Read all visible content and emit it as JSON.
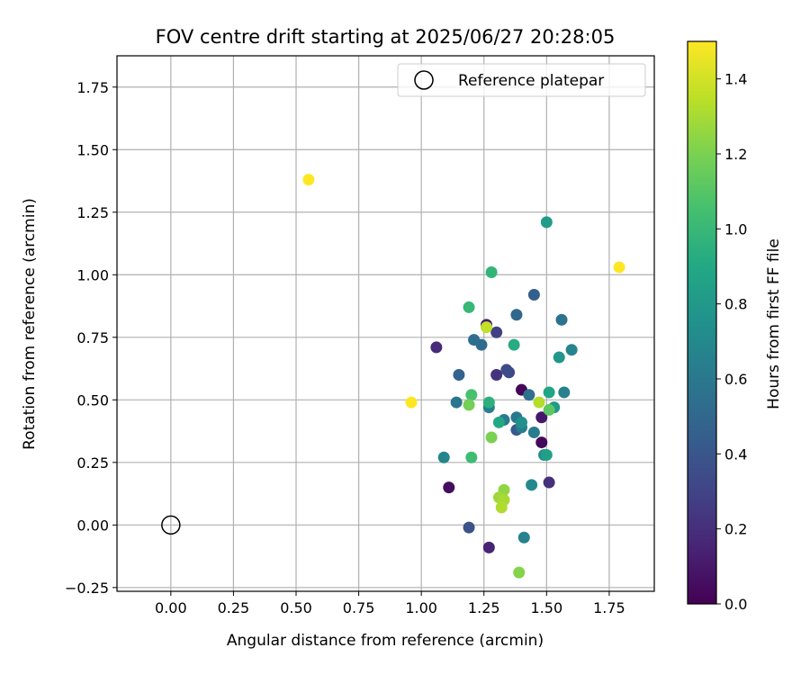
{
  "chart_data": {
    "type": "scatter",
    "title": "FOV centre drift starting at 2025/06/27 20:28:05",
    "xlabel": "Angular distance from reference (arcmin)",
    "ylabel": "Rotation from reference (arcmin)",
    "xlim": [
      -0.215,
      1.93
    ],
    "ylim": [
      -0.265,
      1.875
    ],
    "xticks": [
      0.0,
      0.25,
      0.5,
      0.75,
      1.0,
      1.25,
      1.5,
      1.75
    ],
    "yticks": [
      -0.25,
      0.0,
      0.25,
      0.5,
      0.75,
      1.0,
      1.25,
      1.5,
      1.75
    ],
    "xtick_labels": [
      "0.00",
      "0.25",
      "0.50",
      "0.75",
      "1.00",
      "1.25",
      "1.50",
      "1.75"
    ],
    "ytick_labels": [
      "−0.25",
      "0.00",
      "0.25",
      "0.50",
      "0.75",
      "1.00",
      "1.25",
      "1.50",
      "1.75"
    ],
    "grid": true,
    "legend": {
      "placement": "top-right",
      "entries": [
        "Reference platepar"
      ]
    },
    "reference_point": {
      "x": 0.0,
      "y": 0.0,
      "label": "Reference platepar"
    },
    "colorbar": {
      "label": "Hours from first FF file",
      "colormap": "viridis",
      "range": [
        0.0,
        1.5
      ],
      "ticks": [
        0.0,
        0.2,
        0.4,
        0.6,
        0.8,
        1.0,
        1.2,
        1.4
      ],
      "tick_labels": [
        "0.0",
        "0.2",
        "0.4",
        "0.6",
        "0.8",
        "1.0",
        "1.2",
        "1.4"
      ]
    },
    "points": [
      {
        "x": 1.4,
        "y": 0.54,
        "c": 0.02
      },
      {
        "x": 1.48,
        "y": 0.33,
        "c": 0.03
      },
      {
        "x": 1.11,
        "y": 0.15,
        "c": 0.05
      },
      {
        "x": 1.48,
        "y": 0.43,
        "c": 0.1
      },
      {
        "x": 1.26,
        "y": 0.8,
        "c": 0.12
      },
      {
        "x": 1.27,
        "y": -0.09,
        "c": 0.15
      },
      {
        "x": 1.06,
        "y": 0.71,
        "c": 0.18
      },
      {
        "x": 1.51,
        "y": 0.17,
        "c": 0.2
      },
      {
        "x": 1.3,
        "y": 0.6,
        "c": 0.22
      },
      {
        "x": 1.3,
        "y": 0.77,
        "c": 0.28
      },
      {
        "x": 1.35,
        "y": 0.61,
        "c": 0.32
      },
      {
        "x": 1.34,
        "y": 0.62,
        "c": 0.34
      },
      {
        "x": 1.19,
        "y": -0.01,
        "c": 0.38
      },
      {
        "x": 1.38,
        "y": 0.38,
        "c": 0.42
      },
      {
        "x": 1.45,
        "y": 0.92,
        "c": 0.45
      },
      {
        "x": 1.15,
        "y": 0.6,
        "c": 0.48
      },
      {
        "x": 1.38,
        "y": 0.84,
        "c": 0.5
      },
      {
        "x": 1.24,
        "y": 0.72,
        "c": 0.52
      },
      {
        "x": 1.21,
        "y": 0.74,
        "c": 0.54
      },
      {
        "x": 1.43,
        "y": 0.52,
        "c": 0.55
      },
      {
        "x": 1.56,
        "y": 0.82,
        "c": 0.57
      },
      {
        "x": 1.14,
        "y": 0.49,
        "c": 0.58
      },
      {
        "x": 1.38,
        "y": 0.43,
        "c": 0.6
      },
      {
        "x": 1.33,
        "y": 0.42,
        "c": 0.62
      },
      {
        "x": 1.45,
        "y": 0.37,
        "c": 0.62
      },
      {
        "x": 1.4,
        "y": 0.39,
        "c": 0.63
      },
      {
        "x": 1.27,
        "y": 0.47,
        "c": 0.65
      },
      {
        "x": 1.57,
        "y": 0.53,
        "c": 0.65
      },
      {
        "x": 1.41,
        "y": -0.05,
        "c": 0.66
      },
      {
        "x": 1.6,
        "y": 0.7,
        "c": 0.67
      },
      {
        "x": 1.09,
        "y": 0.27,
        "c": 0.68
      },
      {
        "x": 1.44,
        "y": 0.16,
        "c": 0.7
      },
      {
        "x": 1.49,
        "y": 0.28,
        "c": 0.72
      },
      {
        "x": 1.4,
        "y": 0.41,
        "c": 0.75
      },
      {
        "x": 1.55,
        "y": 0.67,
        "c": 0.78
      },
      {
        "x": 1.53,
        "y": 0.47,
        "c": 0.8
      },
      {
        "x": 1.5,
        "y": 1.21,
        "c": 0.82
      },
      {
        "x": 1.5,
        "y": 0.28,
        "c": 0.85
      },
      {
        "x": 1.51,
        "y": 0.53,
        "c": 0.88
      },
      {
        "x": 1.31,
        "y": 0.41,
        "c": 0.9
      },
      {
        "x": 1.37,
        "y": 0.72,
        "c": 0.92
      },
      {
        "x": 1.27,
        "y": 0.49,
        "c": 0.95
      },
      {
        "x": 1.28,
        "y": 1.01,
        "c": 0.98
      },
      {
        "x": 1.19,
        "y": 0.87,
        "c": 1.0
      },
      {
        "x": 1.2,
        "y": 0.27,
        "c": 1.03
      },
      {
        "x": 1.2,
        "y": 0.52,
        "c": 1.06
      },
      {
        "x": 1.51,
        "y": 0.46,
        "c": 1.12
      },
      {
        "x": 1.19,
        "y": 0.48,
        "c": 1.18
      },
      {
        "x": 1.28,
        "y": 0.35,
        "c": 1.2
      },
      {
        "x": 1.39,
        "y": -0.19,
        "c": 1.22
      },
      {
        "x": 1.33,
        "y": 0.14,
        "c": 1.25
      },
      {
        "x": 1.31,
        "y": 0.11,
        "c": 1.28
      },
      {
        "x": 1.33,
        "y": 0.1,
        "c": 1.3
      },
      {
        "x": 1.32,
        "y": 0.07,
        "c": 1.32
      },
      {
        "x": 1.47,
        "y": 0.49,
        "c": 1.33
      },
      {
        "x": 1.26,
        "y": 0.79,
        "c": 1.36
      },
      {
        "x": 0.96,
        "y": 0.49,
        "c": 1.5
      },
      {
        "x": 0.55,
        "y": 1.38,
        "c": 1.5
      },
      {
        "x": 1.79,
        "y": 1.03,
        "c": 1.5
      }
    ]
  }
}
